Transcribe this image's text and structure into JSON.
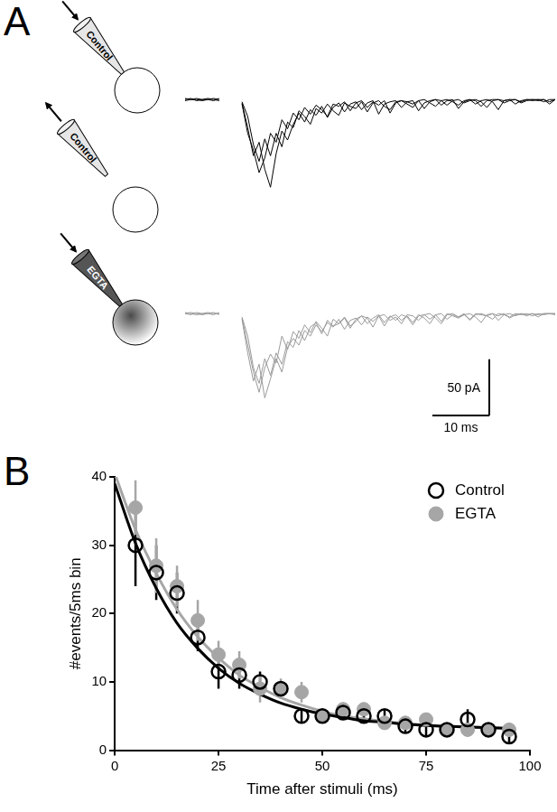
{
  "panel_labels": [
    "A",
    "B"
  ],
  "schematic": {
    "pipettes": [
      {
        "label": "Control",
        "arrow": "in"
      },
      {
        "label": "Control",
        "arrow": "out"
      },
      {
        "label": "EGTA",
        "arrow": "in"
      }
    ]
  },
  "chart_data": [
    {
      "type": "line",
      "tick_labels": false,
      "xlim": [
        -10,
        55
      ],
      "ylim": [
        -85,
        5
      ],
      "scale_bar": {
        "y": 50,
        "y_label": "50 pA",
        "x": 10,
        "x_label": "10 ms"
      },
      "x": [
        -10,
        -9,
        -8,
        -7,
        -6,
        -5,
        -4,
        -3,
        -2,
        -1,
        0,
        1,
        2,
        3,
        4,
        5,
        6,
        7,
        8,
        9,
        10,
        11,
        12,
        13,
        14,
        15,
        16,
        17,
        18,
        19,
        20,
        21,
        22,
        23,
        24,
        25,
        26,
        27,
        28,
        29,
        30,
        31,
        32,
        33,
        34,
        35,
        36,
        37,
        38,
        39,
        40,
        41,
        42,
        43,
        44,
        45,
        46,
        47,
        48,
        49,
        50,
        51,
        52,
        53,
        54,
        55
      ],
      "series": [
        {
          "color": "#000000",
          "values": [
            0,
            1,
            -1,
            0,
            1,
            0,
            -1,
            null,
            null,
            null,
            -3,
            -25,
            -50,
            -38,
            -62,
            -78,
            -48,
            -28,
            -36,
            -22,
            -12,
            -20,
            -9,
            -14,
            -6,
            -16,
            -7,
            -3,
            -11,
            -4,
            -2,
            -9,
            -3,
            -1,
            -13,
            -4,
            -2,
            -1,
            -7,
            -2,
            -1,
            -10,
            -3,
            -1,
            0,
            -5,
            -1,
            0,
            -8,
            -2,
            0,
            -1,
            -6,
            -1,
            0,
            0,
            -3,
            -1,
            0,
            -2,
            0,
            0,
            -1,
            0,
            -4,
            0
          ]
        },
        {
          "color": "#000000",
          "values": [
            1,
            0,
            0,
            -1,
            0,
            1,
            0,
            null,
            null,
            null,
            -2,
            -15,
            -40,
            -55,
            -35,
            -50,
            -30,
            -42,
            -20,
            -25,
            -10,
            -15,
            -22,
            -8,
            -12,
            -4,
            -10,
            -14,
            -3,
            -6,
            -8,
            -2,
            -11,
            -3,
            -1,
            -6,
            -9,
            -2,
            -1,
            -4,
            -7,
            -1,
            0,
            -3,
            -6,
            -1,
            0,
            -2,
            -5,
            -1,
            0,
            -4,
            -1,
            0,
            -2,
            -9,
            -1,
            0,
            0,
            -3,
            -1,
            0,
            0,
            -2,
            0,
            0
          ]
        },
        {
          "color": "#000000",
          "values": [
            -1,
            0,
            1,
            0,
            0,
            -1,
            1,
            null,
            null,
            null,
            -4,
            -30,
            -45,
            -65,
            -52,
            -30,
            -38,
            -18,
            -26,
            -12,
            -18,
            -7,
            -13,
            -5,
            -9,
            -15,
            -4,
            -6,
            -2,
            -10,
            -3,
            -1,
            -7,
            -2,
            -5,
            -1,
            -12,
            -3,
            -1,
            -2,
            -4,
            -1,
            -8,
            -2,
            0,
            -1,
            -5,
            -1,
            0,
            -3,
            -1,
            0,
            -2,
            -7,
            -1,
            0,
            -1,
            0,
            -4,
            -1,
            0,
            -1,
            0,
            0,
            -2,
            0
          ]
        }
      ]
    },
    {
      "type": "line",
      "tick_labels": false,
      "xlim": [
        -10,
        55
      ],
      "ylim": [
        -85,
        5
      ],
      "x": [
        -10,
        -9,
        -8,
        -7,
        -6,
        -5,
        -4,
        -3,
        -2,
        -1,
        0,
        1,
        2,
        3,
        4,
        5,
        6,
        7,
        8,
        9,
        10,
        11,
        12,
        13,
        14,
        15,
        16,
        17,
        18,
        19,
        20,
        21,
        22,
        23,
        24,
        25,
        26,
        27,
        28,
        29,
        30,
        31,
        32,
        33,
        34,
        35,
        36,
        37,
        38,
        39,
        40,
        41,
        42,
        43,
        44,
        45,
        46,
        47,
        48,
        49,
        50,
        51,
        52,
        53,
        54,
        55
      ],
      "series": [
        {
          "color": "#9a9a9a",
          "values": [
            0,
            -1,
            1,
            0,
            0,
            1,
            -1,
            null,
            null,
            null,
            -5,
            -35,
            -60,
            -45,
            -75,
            -58,
            -40,
            -52,
            -30,
            -22,
            -28,
            -15,
            -20,
            -10,
            -16,
            -8,
            -12,
            -5,
            -14,
            -6,
            -4,
            -10,
            -3,
            -7,
            -2,
            -11,
            -3,
            -1,
            -6,
            -2,
            -8,
            -1,
            -4,
            -9,
            -1,
            0,
            -5,
            -1,
            -3,
            0,
            -6,
            -1,
            0,
            -2,
            -5,
            0,
            -1,
            -3,
            0,
            -1,
            0,
            -2,
            0,
            -1,
            0,
            0
          ]
        },
        {
          "color": "#9a9a9a",
          "values": [
            1,
            0,
            -1,
            0,
            1,
            0,
            0,
            null,
            null,
            null,
            -3,
            -20,
            -48,
            -62,
            -40,
            -55,
            -35,
            -45,
            -25,
            -30,
            -15,
            -24,
            -12,
            -8,
            -18,
            -6,
            -11,
            -9,
            -4,
            -13,
            -5,
            -2,
            -9,
            -4,
            -1,
            -8,
            -2,
            -6,
            -1,
            -3,
            -10,
            -2,
            -1,
            -5,
            -1,
            -7,
            0,
            -2,
            -4,
            -1,
            0,
            -3,
            -8,
            -1,
            0,
            -2,
            0,
            -4,
            -1,
            0,
            -2,
            0,
            -1,
            0,
            0,
            0
          ]
        },
        {
          "color": "#9a9a9a",
          "values": [
            0,
            1,
            0,
            -1,
            0,
            -1,
            1,
            null,
            null,
            null,
            -4,
            -28,
            -52,
            -70,
            -48,
            -36,
            -44,
            -20,
            -32,
            -16,
            -22,
            -10,
            -17,
            -7,
            -13,
            -20,
            -5,
            -9,
            -3,
            -11,
            -7,
            -2,
            -4,
            -12,
            -2,
            -1,
            -6,
            -3,
            -9,
            -1,
            -2,
            -6,
            -1,
            0,
            -4,
            -9,
            -1,
            0,
            -3,
            -1,
            -5,
            0,
            -1,
            -2,
            0,
            -6,
            -1,
            0,
            -2,
            0,
            -1,
            0,
            -3,
            0,
            0,
            -1
          ]
        }
      ]
    },
    {
      "type": "scatter",
      "x_label": "Time after stimuli (ms)",
      "y_label": "#events/5ms bin",
      "xlim": [
        0,
        100
      ],
      "xticks": [
        0,
        25,
        50,
        75,
        100
      ],
      "ylim": [
        0,
        40
      ],
      "yticks": [
        0,
        10,
        20,
        30,
        40
      ],
      "grid": false,
      "legend": "upper right",
      "x": [
        5,
        10,
        15,
        20,
        25,
        30,
        35,
        40,
        45,
        50,
        55,
        60,
        65,
        70,
        75,
        80,
        85,
        90,
        95
      ],
      "series": [
        {
          "name": "Control",
          "color": "#000000",
          "marker": "open_circle",
          "values": [
            30,
            26,
            23,
            16.5,
            11.5,
            11,
            10,
            9,
            5,
            5,
            5.5,
            5,
            5,
            3.5,
            3,
            3,
            4.5,
            3,
            2
          ],
          "errors": [
            6,
            4,
            3,
            2,
            2.5,
            2,
            1.5,
            1,
            1,
            1,
            1,
            1,
            1,
            1,
            1,
            1,
            1.5,
            1,
            1
          ],
          "fit": {
            "x": [
              0,
              5,
              10,
              15,
              20,
              25,
              30,
              35,
              40,
              45,
              50,
              55,
              60,
              65,
              70,
              75,
              80,
              85,
              90,
              95
            ],
            "values": [
              39,
              30.3,
              23.7,
              18.6,
              14.9,
              12,
              9.8,
              8.2,
              6.9,
              6,
              5.3,
              4.8,
              4.3,
              4.1,
              3.8,
              3.6,
              3.5,
              3.4,
              3.3,
              3.2
            ]
          }
        },
        {
          "name": "EGTA",
          "color": "#a6a6a6",
          "marker": "circle",
          "values": [
            35.5,
            27,
            24,
            19,
            14,
            12.5,
            9,
            9,
            8.5,
            5,
            6,
            6,
            4,
            4,
            4.5,
            3,
            3,
            3,
            3
          ],
          "errors": [
            4,
            4,
            3,
            3,
            2,
            2,
            2,
            1.5,
            1.5,
            1,
            1,
            1,
            1,
            1,
            1,
            1,
            1,
            1,
            1
          ],
          "fit": {
            "x": [
              0,
              5,
              10,
              15,
              20,
              25,
              30,
              35,
              40,
              45,
              50,
              55,
              60,
              65,
              70,
              75,
              80,
              85,
              90,
              95
            ],
            "values": [
              40.5,
              32.3,
              25.9,
              20.6,
              16.6,
              13.5,
              11,
              9.2,
              7.7,
              6.6,
              5.7,
              5,
              4.6,
              4.2,
              3.9,
              3.7,
              3.5,
              3.4,
              3.3,
              3.2
            ]
          }
        }
      ]
    }
  ]
}
